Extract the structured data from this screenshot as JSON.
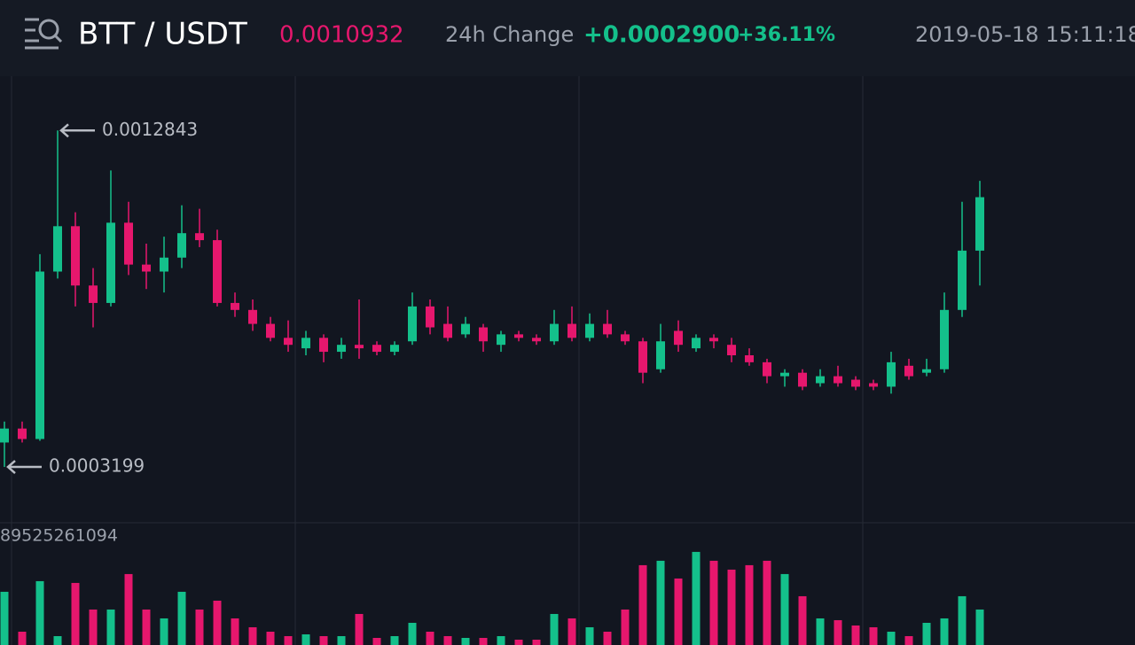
{
  "header": {
    "pair": "BTT / USDT",
    "price": "0.0010932",
    "change_label": "24h Change",
    "change": "+0.0002900",
    "change_pct": "+36.11%",
    "time": "2019-05-18 15:11:18"
  },
  "chart_data": {
    "type": "candlestick",
    "open": [
      0.00039,
      0.00043,
      0.0004,
      0.00088,
      0.00101,
      0.00084,
      0.00079,
      0.00102,
      0.0009,
      0.00088,
      0.00092,
      0.00099,
      0.00097,
      0.00079,
      0.00077,
      0.00073,
      0.00069,
      0.00066,
      0.00069,
      0.00065,
      0.00067,
      0.00067,
      0.00065,
      0.00068,
      0.00078,
      0.00073,
      0.0007,
      0.00072,
      0.00067,
      0.0007,
      0.00069,
      0.00068,
      0.00073,
      0.00069,
      0.00073,
      0.0007,
      0.00068,
      0.0006,
      0.00071,
      0.00066,
      0.00069,
      0.00067,
      0.00064,
      0.00062,
      0.00058,
      0.00059,
      0.00056,
      0.00058,
      0.00057,
      0.00056,
      0.00055,
      0.00061,
      0.00059,
      0.0006,
      0.00077,
      0.00094
    ],
    "high": [
      0.00045,
      0.00045,
      0.00093,
      0.0012843,
      0.00105,
      0.00089,
      0.00117,
      0.00108,
      0.00096,
      0.00098,
      0.00107,
      0.00106,
      0.001,
      0.00082,
      0.0008,
      0.00075,
      0.00074,
      0.00071,
      0.0007,
      0.00069,
      0.0008,
      0.00068,
      0.00068,
      0.00082,
      0.0008,
      0.00078,
      0.00075,
      0.00073,
      0.00071,
      0.00071,
      0.0007,
      0.00077,
      0.00078,
      0.00076,
      0.00077,
      0.00071,
      0.00069,
      0.00073,
      0.00074,
      0.0007,
      0.0007,
      0.00069,
      0.00066,
      0.00063,
      0.0006,
      0.0006,
      0.0006,
      0.00061,
      0.00058,
      0.00057,
      0.00065,
      0.00063,
      0.00063,
      0.00082,
      0.00108,
      0.00114
    ],
    "low": [
      0.0003199,
      0.00039,
      0.000395,
      0.00086,
      0.00078,
      0.00072,
      0.00078,
      0.00087,
      0.00083,
      0.00082,
      0.00089,
      0.00095,
      0.00078,
      0.00075,
      0.00071,
      0.00068,
      0.00065,
      0.00064,
      0.00062,
      0.00063,
      0.00063,
      0.00064,
      0.00064,
      0.00067,
      0.0007,
      0.00068,
      0.00069,
      0.00065,
      0.00065,
      0.00068,
      0.00067,
      0.00067,
      0.00068,
      0.00068,
      0.00069,
      0.00067,
      0.00056,
      0.00059,
      0.00065,
      0.00065,
      0.00066,
      0.00062,
      0.00061,
      0.00056,
      0.00055,
      0.00054,
      0.00055,
      0.00055,
      0.00054,
      0.00054,
      0.00053,
      0.00057,
      0.00058,
      0.00059,
      0.00075,
      0.00084
    ],
    "close": [
      0.00043,
      0.0004,
      0.00088,
      0.00101,
      0.00084,
      0.00079,
      0.00102,
      0.0009,
      0.00088,
      0.00092,
      0.00099,
      0.00097,
      0.00079,
      0.00077,
      0.00073,
      0.00069,
      0.00067,
      0.00069,
      0.00065,
      0.00067,
      0.00066,
      0.00065,
      0.00067,
      0.00078,
      0.00072,
      0.00069,
      0.00073,
      0.00068,
      0.0007,
      0.00069,
      0.00068,
      0.00073,
      0.00069,
      0.00073,
      0.0007,
      0.00068,
      0.00059,
      0.00068,
      0.00067,
      0.00069,
      0.00068,
      0.00064,
      0.00062,
      0.00058,
      0.00059,
      0.00055,
      0.00058,
      0.00056,
      0.00055,
      0.00055,
      0.00062,
      0.00058,
      0.0006,
      0.00077,
      0.00094,
      0.0010932
    ],
    "volume": [
      42000000000,
      10500000000,
      50400000000,
      7000000000,
      49000000000,
      28000000000,
      28000000000,
      56000000000,
      28000000000,
      21000000000,
      42000000000,
      28000000000,
      35000000000,
      21000000000,
      14000000000,
      10500000000,
      7000000000,
      8400000000,
      7000000000,
      7000000000,
      24500000000,
      5600000000,
      7000000000,
      17500000000,
      10500000000,
      7000000000,
      5600000000,
      5600000000,
      7000000000,
      4200000000,
      4200000000,
      24500000000,
      21000000000,
      14000000000,
      10500000000,
      28000000000,
      63000000000,
      66500000000,
      52500000000,
      73500000000,
      66500000000,
      59500000000,
      63000000000,
      66500000000,
      56000000000,
      38500000000,
      21000000000,
      19600000000,
      15400000000,
      14000000000,
      10500000000,
      7000000000,
      17500000000,
      21000000000,
      38500000000,
      28000000000
    ],
    "ylim": [
      0.00016,
      0.00144
    ],
    "vlim": [
      0,
      89525261094
    ],
    "up_color": "#14c08b",
    "down_color": "#e6176d"
  }
}
